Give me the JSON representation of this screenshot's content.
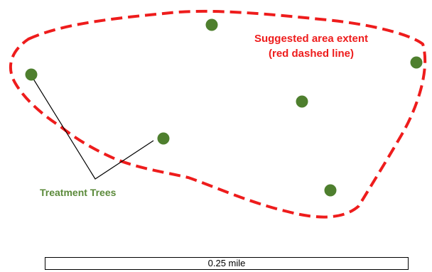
{
  "area_label": {
    "line1": "Suggested area extent",
    "line2": "(red dashed line)"
  },
  "tree_label": "Treatment Trees",
  "scale_bar": {
    "label": "0.25 mile"
  },
  "trees": [
    {
      "name": "tree-1"
    },
    {
      "name": "tree-2"
    },
    {
      "name": "tree-3"
    },
    {
      "name": "tree-4"
    },
    {
      "name": "tree-5"
    },
    {
      "name": "tree-6"
    }
  ],
  "colors": {
    "boundary": "#ee1c1c",
    "tree": "#4e7f2e",
    "tree_label": "#5b8a3a",
    "leader_line": "#000000"
  },
  "icons": {
    "tree": "tree-marker-icon"
  }
}
